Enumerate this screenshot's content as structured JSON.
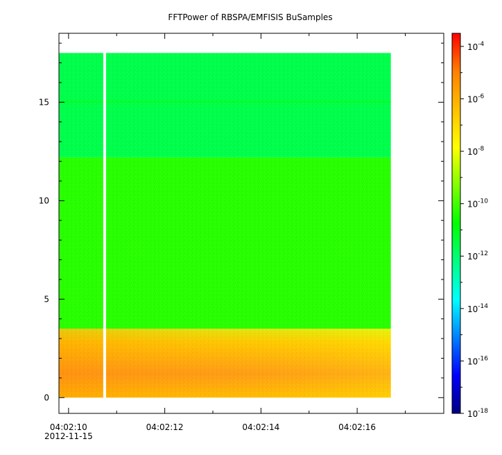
{
  "chart_data": {
    "type": "heatmap",
    "title": "FFTPower of RBSPA/EMFISIS  BuSamples",
    "xlabel": "",
    "ylabel": "",
    "x_ticks": [
      {
        "value": 10,
        "label": "04:02:10",
        "label2": "2012-11-15"
      },
      {
        "value": 12,
        "label": "04:02:12"
      },
      {
        "value": 14,
        "label": "04:02:14"
      },
      {
        "value": 16,
        "label": "04:02:16"
      }
    ],
    "x_minor_ticks": [
      11,
      13,
      15,
      17
    ],
    "xlim": [
      9.8,
      17.8
    ],
    "data_xrange": [
      9.8,
      16.7
    ],
    "gap_x": 10.75,
    "y_ticks": [
      {
        "value": 0,
        "label": "0"
      },
      {
        "value": 5,
        "label": "5"
      },
      {
        "value": 10,
        "label": "10"
      },
      {
        "value": 15,
        "label": "15"
      }
    ],
    "ylim": [
      -0.8,
      18.5
    ],
    "data_yrange": [
      0,
      17.5
    ],
    "colorbar": {
      "scale": "log",
      "range_exp": [
        -18,
        -3.5
      ],
      "colors": [
        "#00007f",
        "#0000ff",
        "#0080ff",
        "#00ffff",
        "#00ff80",
        "#00ff00",
        "#80ff00",
        "#ffff00",
        "#ffc000",
        "#ff8000",
        "#ff0000"
      ],
      "ticks": [
        {
          "base": "10",
          "exp": "-4",
          "value": -4
        },
        {
          "base": "10",
          "exp": "-6",
          "value": -6
        },
        {
          "base": "10",
          "exp": "-8",
          "value": -8
        },
        {
          "base": "10",
          "exp": "-10",
          "value": -10
        },
        {
          "base": "10",
          "exp": "-12",
          "value": -12
        },
        {
          "base": "10",
          "exp": "-14",
          "value": -14
        },
        {
          "base": "10",
          "exp": "-16",
          "value": -16
        },
        {
          "base": "10",
          "exp": "-18",
          "value": -18
        }
      ]
    },
    "bands": [
      {
        "y": [
          0,
          3.5
        ],
        "level": -7.0,
        "note": "orange/yellow low-frequency band"
      },
      {
        "y": [
          3.5,
          12.2
        ],
        "level": -10.3
      },
      {
        "y": [
          12.2,
          17.5
        ],
        "level": -11.6
      },
      {
        "y": [
          15.0,
          15.05
        ],
        "level": -10.6
      }
    ]
  }
}
